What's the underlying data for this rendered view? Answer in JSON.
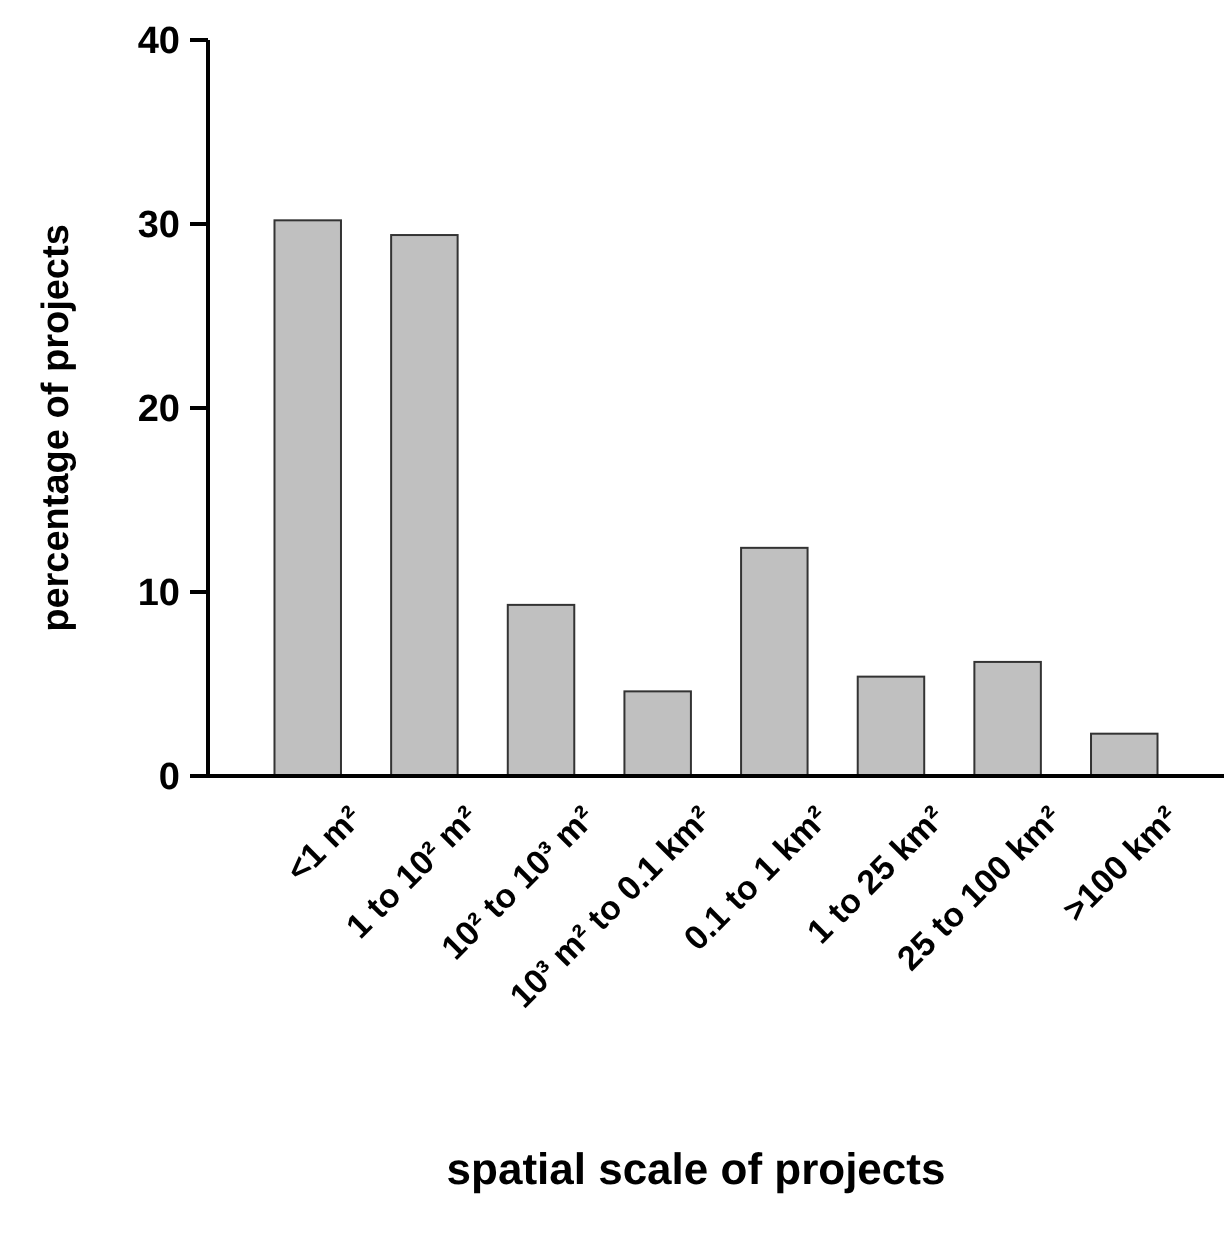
{
  "chart_data": {
    "type": "bar",
    "xlabel": "spatial scale of projects",
    "ylabel": "percentage of projects",
    "categories": [
      "<1 m²",
      "1 to 10² m²",
      "10² to 10³ m²",
      "10³ m² to 0.1 km²",
      "0.1 to 1 km²",
      "1 to 25 km²",
      "25 to 100 km²",
      ">100 km²"
    ],
    "values": [
      30.2,
      29.4,
      9.3,
      4.6,
      12.4,
      5.4,
      6.2,
      2.3
    ],
    "color": "#c0c0c0",
    "ylim": [
      0,
      40
    ],
    "yticks": [
      0,
      10,
      20,
      30,
      40
    ],
    "grid": false
  }
}
